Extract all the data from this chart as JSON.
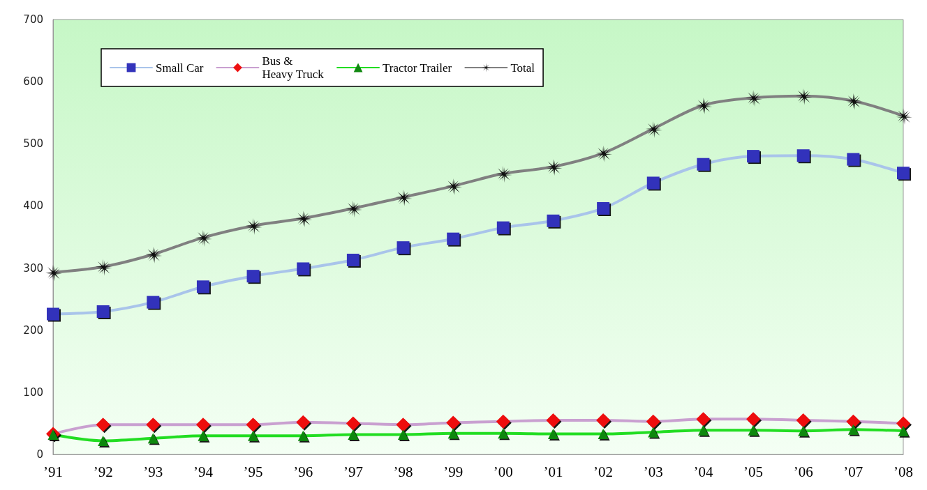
{
  "chart_data": {
    "type": "line",
    "categories": [
      "’91",
      "’92",
      "’93",
      "’94",
      "’95",
      "’96",
      "’97",
      "’98",
      "’99",
      "’00",
      "’01",
      "’02",
      "’03",
      "’04",
      "’05",
      "’06",
      "’07",
      "’08"
    ],
    "ylim": [
      0,
      700
    ],
    "yticks": [
      0,
      100,
      200,
      300,
      400,
      500,
      600,
      700
    ],
    "grid": false,
    "legend": "top left",
    "series": [
      {
        "name": "Small Car",
        "color": "#a9c4ea",
        "marker": "square",
        "values": [
          226,
          230,
          245,
          270,
          287,
          299,
          313,
          333,
          347,
          365,
          376,
          396,
          437,
          467,
          480,
          481,
          475,
          453
        ]
      },
      {
        "name": "Bus &\nHeavy Truck",
        "color": "#c9a0d0",
        "marker": "diamond",
        "values": [
          33,
          48,
          48,
          48,
          48,
          52,
          50,
          48,
          51,
          53,
          55,
          55,
          53,
          57,
          57,
          55,
          53,
          50
        ]
      },
      {
        "name": "Tractor Trailer",
        "color": "#22dd22",
        "marker": "triangle",
        "values": [
          32,
          22,
          26,
          30,
          30,
          30,
          32,
          32,
          34,
          34,
          33,
          33,
          36,
          39,
          39,
          38,
          40,
          38
        ]
      },
      {
        "name": "Total",
        "color": "#808080",
        "marker": "star",
        "values": [
          293,
          302,
          322,
          349,
          368,
          380,
          396,
          414,
          432,
          452,
          463,
          485,
          524,
          562,
          574,
          577,
          569,
          545
        ]
      }
    ]
  }
}
